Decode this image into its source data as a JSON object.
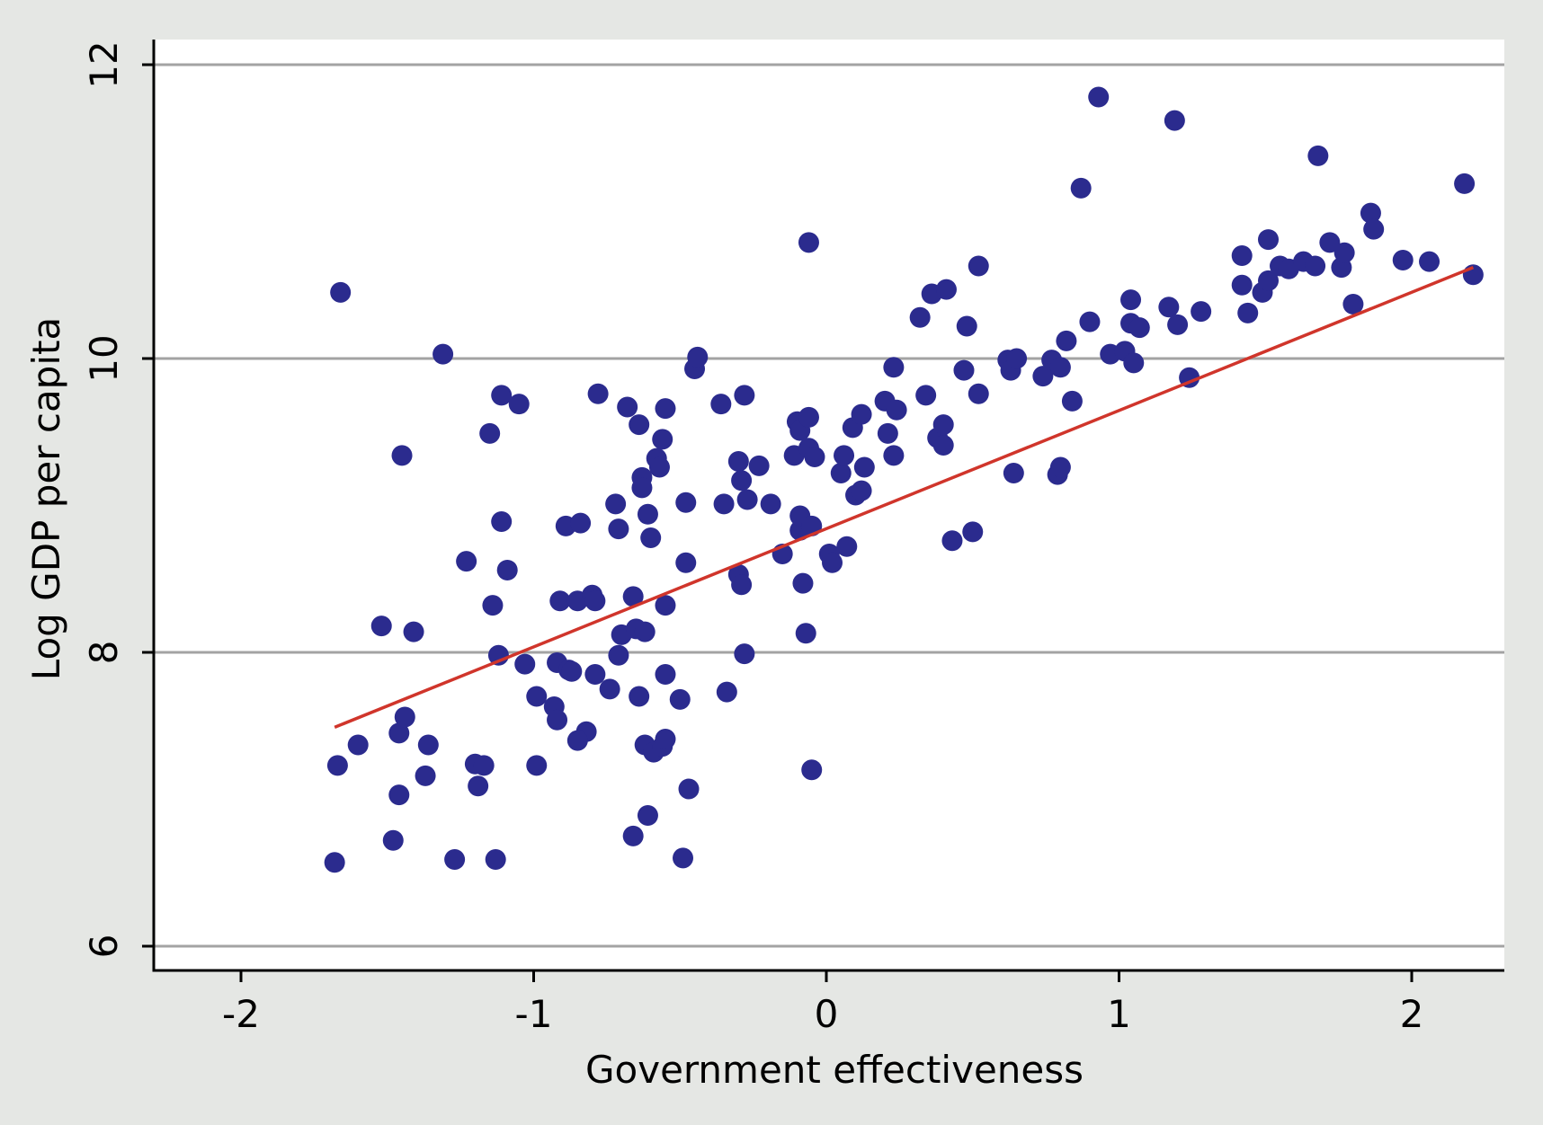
{
  "chart_data": {
    "type": "scatter",
    "title": "",
    "xlabel": "Government effectiveness",
    "ylabel": "Log GDP per capita",
    "xlim": [
      -2.3,
      2.3
    ],
    "ylim": [
      5.9,
      12.2
    ],
    "xticks": [
      -2,
      -1,
      0,
      1,
      2
    ],
    "yticks": [
      6,
      8,
      10,
      12
    ],
    "x_tick_labels": [
      "-2",
      "-1",
      "0",
      "1",
      "2"
    ],
    "y_tick_labels": [
      "6",
      "8",
      "10",
      "12"
    ],
    "grid": "horizontal",
    "legend": "none",
    "colors": {
      "page_background": "#e5e7e4",
      "plot_background": "#ffffff",
      "points": "#2b2b8e",
      "fit_line": "#d0352b",
      "gridlines": "#a3a3a3",
      "axes": "#000000"
    },
    "fit_line": {
      "x": [
        -1.68,
        2.21
      ],
      "y": [
        7.49,
        10.62
      ]
    },
    "points": [
      [
        -1.68,
        6.57
      ],
      [
        -1.67,
        7.23
      ],
      [
        -1.66,
        10.45
      ],
      [
        -1.6,
        7.37
      ],
      [
        -1.52,
        8.18
      ],
      [
        -1.48,
        6.72
      ],
      [
        -1.46,
        7.45
      ],
      [
        -1.46,
        7.03
      ],
      [
        -1.45,
        9.34
      ],
      [
        -1.44,
        7.56
      ],
      [
        -1.41,
        8.14
      ],
      [
        -1.36,
        7.37
      ],
      [
        -1.37,
        7.16
      ],
      [
        -1.31,
        10.03
      ],
      [
        -1.27,
        6.59
      ],
      [
        -1.23,
        8.62
      ],
      [
        -1.2,
        7.24
      ],
      [
        -1.19,
        7.09
      ],
      [
        -1.17,
        7.23
      ],
      [
        -1.15,
        9.49
      ],
      [
        -1.14,
        8.32
      ],
      [
        -1.13,
        6.59
      ],
      [
        -1.12,
        7.98
      ],
      [
        -1.11,
        8.89
      ],
      [
        -1.11,
        9.75
      ],
      [
        -1.09,
        8.56
      ],
      [
        -1.05,
        9.69
      ],
      [
        -1.03,
        7.92
      ],
      [
        -0.99,
        7.7
      ],
      [
        -0.99,
        7.23
      ],
      [
        -0.93,
        7.63
      ],
      [
        -0.92,
        7.93
      ],
      [
        -0.92,
        7.54
      ],
      [
        -0.91,
        8.35
      ],
      [
        -0.89,
        8.86
      ],
      [
        -0.88,
        7.88
      ],
      [
        -0.87,
        7.87
      ],
      [
        -0.85,
        8.35
      ],
      [
        -0.84,
        8.88
      ],
      [
        -0.82,
        7.46
      ],
      [
        -0.85,
        7.4
      ],
      [
        -0.8,
        8.39
      ],
      [
        -0.79,
        8.35
      ],
      [
        -0.79,
        7.85
      ],
      [
        -0.78,
        9.76
      ],
      [
        -0.74,
        7.75
      ],
      [
        -0.72,
        9.01
      ],
      [
        -0.71,
        8.84
      ],
      [
        -0.71,
        7.98
      ],
      [
        -0.7,
        8.12
      ],
      [
        -0.68,
        9.67
      ],
      [
        -0.66,
        8.38
      ],
      [
        -0.66,
        6.75
      ],
      [
        -0.65,
        8.16
      ],
      [
        -0.64,
        9.55
      ],
      [
        -0.64,
        7.7
      ],
      [
        -0.63,
        9.19
      ],
      [
        -0.63,
        9.12
      ],
      [
        -0.62,
        7.37
      ],
      [
        -0.62,
        8.14
      ],
      [
        -0.61,
        6.89
      ],
      [
        -0.61,
        8.94
      ],
      [
        -0.6,
        8.78
      ],
      [
        -0.59,
        7.32
      ],
      [
        -0.58,
        9.32
      ],
      [
        -0.57,
        9.26
      ],
      [
        -0.56,
        9.45
      ],
      [
        -0.56,
        7.36
      ],
      [
        -0.55,
        7.41
      ],
      [
        -0.55,
        9.66
      ],
      [
        -0.55,
        8.32
      ],
      [
        -0.55,
        7.85
      ],
      [
        -0.5,
        7.68
      ],
      [
        -0.49,
        6.6
      ],
      [
        -0.48,
        8.61
      ],
      [
        -0.48,
        9.02
      ],
      [
        -0.47,
        7.07
      ],
      [
        -0.45,
        9.93
      ],
      [
        -0.44,
        10.01
      ],
      [
        -0.36,
        9.69
      ],
      [
        -0.35,
        9.01
      ],
      [
        -0.34,
        7.73
      ],
      [
        -0.3,
        9.3
      ],
      [
        -0.3,
        8.53
      ],
      [
        -0.29,
        9.17
      ],
      [
        -0.29,
        8.46
      ],
      [
        -0.28,
        7.99
      ],
      [
        -0.28,
        9.75
      ],
      [
        -0.27,
        9.04
      ],
      [
        -0.23,
        9.27
      ],
      [
        -0.19,
        9.01
      ],
      [
        -0.15,
        8.67
      ],
      [
        -0.11,
        9.34
      ],
      [
        -0.1,
        9.57
      ],
      [
        -0.09,
        9.51
      ],
      [
        -0.09,
        8.83
      ],
      [
        -0.09,
        8.93
      ],
      [
        -0.08,
        8.47
      ],
      [
        -0.07,
        8.13
      ],
      [
        -0.06,
        10.79
      ],
      [
        -0.06,
        9.39
      ],
      [
        -0.06,
        9.6
      ],
      [
        -0.05,
        8.86
      ],
      [
        -0.05,
        7.2
      ],
      [
        -0.04,
        9.33
      ],
      [
        0.01,
        8.67
      ],
      [
        0.02,
        8.61
      ],
      [
        0.05,
        9.22
      ],
      [
        0.06,
        9.34
      ],
      [
        0.07,
        8.72
      ],
      [
        0.09,
        9.53
      ],
      [
        0.1,
        9.07
      ],
      [
        0.12,
        9.62
      ],
      [
        0.12,
        9.1
      ],
      [
        0.13,
        9.26
      ],
      [
        0.2,
        9.71
      ],
      [
        0.21,
        9.49
      ],
      [
        0.23,
        9.34
      ],
      [
        0.23,
        9.94
      ],
      [
        0.24,
        9.65
      ],
      [
        0.32,
        10.28
      ],
      [
        0.34,
        9.75
      ],
      [
        0.36,
        10.44
      ],
      [
        0.38,
        9.46
      ],
      [
        0.4,
        9.41
      ],
      [
        0.4,
        9.55
      ],
      [
        0.41,
        10.47
      ],
      [
        0.43,
        8.76
      ],
      [
        0.47,
        9.92
      ],
      [
        0.48,
        10.22
      ],
      [
        0.5,
        8.82
      ],
      [
        0.52,
        9.76
      ],
      [
        0.52,
        10.63
      ],
      [
        0.62,
        9.99
      ],
      [
        0.63,
        9.92
      ],
      [
        0.64,
        9.22
      ],
      [
        0.65,
        10.0
      ],
      [
        0.74,
        9.88
      ],
      [
        0.77,
        9.99
      ],
      [
        0.79,
        9.21
      ],
      [
        0.8,
        9.26
      ],
      [
        0.8,
        9.94
      ],
      [
        0.82,
        10.12
      ],
      [
        0.84,
        9.71
      ],
      [
        0.87,
        11.16
      ],
      [
        0.9,
        10.25
      ],
      [
        0.93,
        11.78
      ],
      [
        0.97,
        10.03
      ],
      [
        1.02,
        10.05
      ],
      [
        1.04,
        10.24
      ],
      [
        1.04,
        10.4
      ],
      [
        1.05,
        9.97
      ],
      [
        1.07,
        10.21
      ],
      [
        1.17,
        10.35
      ],
      [
        1.19,
        11.62
      ],
      [
        1.2,
        10.23
      ],
      [
        1.24,
        9.87
      ],
      [
        1.28,
        10.32
      ],
      [
        1.42,
        10.7
      ],
      [
        1.42,
        10.5
      ],
      [
        1.44,
        10.31
      ],
      [
        1.49,
        10.45
      ],
      [
        1.51,
        10.53
      ],
      [
        1.51,
        10.81
      ],
      [
        1.55,
        10.63
      ],
      [
        1.58,
        10.61
      ],
      [
        1.63,
        10.66
      ],
      [
        1.67,
        10.63
      ],
      [
        1.68,
        11.38
      ],
      [
        1.72,
        10.79
      ],
      [
        1.76,
        10.62
      ],
      [
        1.77,
        10.72
      ],
      [
        1.8,
        10.37
      ],
      [
        1.86,
        10.99
      ],
      [
        1.87,
        10.88
      ],
      [
        1.97,
        10.67
      ],
      [
        2.06,
        10.66
      ],
      [
        2.18,
        11.19
      ],
      [
        2.21,
        10.57
      ]
    ]
  }
}
